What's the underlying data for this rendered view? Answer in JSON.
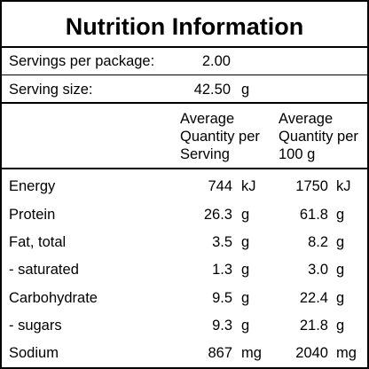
{
  "title": "Nutrition Information",
  "servings": {
    "label": "Servings per package:",
    "value": "2.00"
  },
  "serving_size": {
    "label": "Serving size:",
    "value": "42.50",
    "unit": "g"
  },
  "headers": {
    "per_serving": [
      "Average",
      "Quantity per",
      "Serving"
    ],
    "per_100g": [
      "Average",
      "Quantity per",
      "100 g"
    ]
  },
  "rows": [
    {
      "name": "Energy",
      "serving": "744",
      "serving_unit": "kJ",
      "per100": "1750",
      "per100_unit": "kJ"
    },
    {
      "name": "Protein",
      "serving": "26.3",
      "serving_unit": "g",
      "per100": "61.8",
      "per100_unit": "g"
    },
    {
      "name": "Fat, total",
      "serving": "3.5",
      "serving_unit": "g",
      "per100": "8.2",
      "per100_unit": "g"
    },
    {
      "name": "- saturated",
      "serving": "1.3",
      "serving_unit": "g",
      "per100": "3.0",
      "per100_unit": "g"
    },
    {
      "name": "Carbohydrate",
      "serving": "9.5",
      "serving_unit": "g",
      "per100": "22.4",
      "per100_unit": "g"
    },
    {
      "name": "- sugars",
      "serving": "9.3",
      "serving_unit": "g",
      "per100": "21.8",
      "per100_unit": "g"
    },
    {
      "name": "Sodium",
      "serving": "867",
      "serving_unit": "mg",
      "per100": "2040",
      "per100_unit": "mg"
    }
  ]
}
